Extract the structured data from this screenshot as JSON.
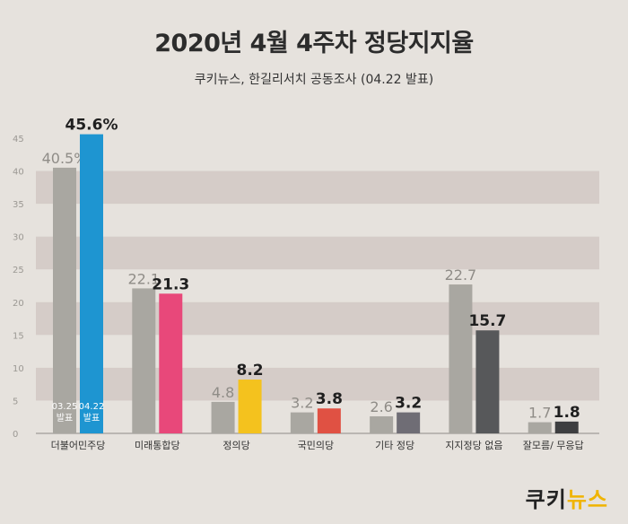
{
  "title": "2020년 4월 4주차 정당지지율",
  "subtitle": "쿠키뉴스, 한길리서치 공동조사 (04.22 발표)",
  "brand": {
    "part1": "쿠키",
    "part2": "뉴스"
  },
  "colors": {
    "prev_bar": "#a9a7a1",
    "band": "#d5ccc8",
    "background": "#e6e2dd"
  },
  "chart_data": {
    "type": "bar",
    "categories": [
      "더불어민주당",
      "미래통합당",
      "정의당",
      "국민의당",
      "기타 정당",
      "지지정당 없음",
      "잘모름/ 무응답"
    ],
    "series": [
      {
        "name": "03.25 발표",
        "values": [
          40.5,
          22.1,
          4.8,
          3.2,
          2.6,
          22.7,
          1.7
        ]
      },
      {
        "name": "04.22 발표",
        "values": [
          45.6,
          21.3,
          8.2,
          3.8,
          3.2,
          15.7,
          1.8
        ]
      }
    ],
    "value_labels": {
      "prev": [
        "40.5%",
        "22.1",
        "4.8",
        "3.2",
        "2.6",
        "22.7",
        "1.7"
      ],
      "curr": [
        "45.6%",
        "21.3",
        "8.2",
        "3.8",
        "3.2",
        "15.7",
        "1.8"
      ]
    },
    "current_colors": [
      "#1e95d1",
      "#e8487a",
      "#f4c21e",
      "#e05143",
      "#6f6d75",
      "#57585a",
      "#3d3e40"
    ],
    "yticks": [
      0,
      5,
      10,
      15,
      20,
      25,
      30,
      35,
      40,
      45
    ],
    "ylim": [
      0,
      45
    ],
    "inbar_labels": {
      "prev": [
        "03.25",
        "발표"
      ],
      "curr": [
        "04.22",
        "발표"
      ]
    }
  }
}
